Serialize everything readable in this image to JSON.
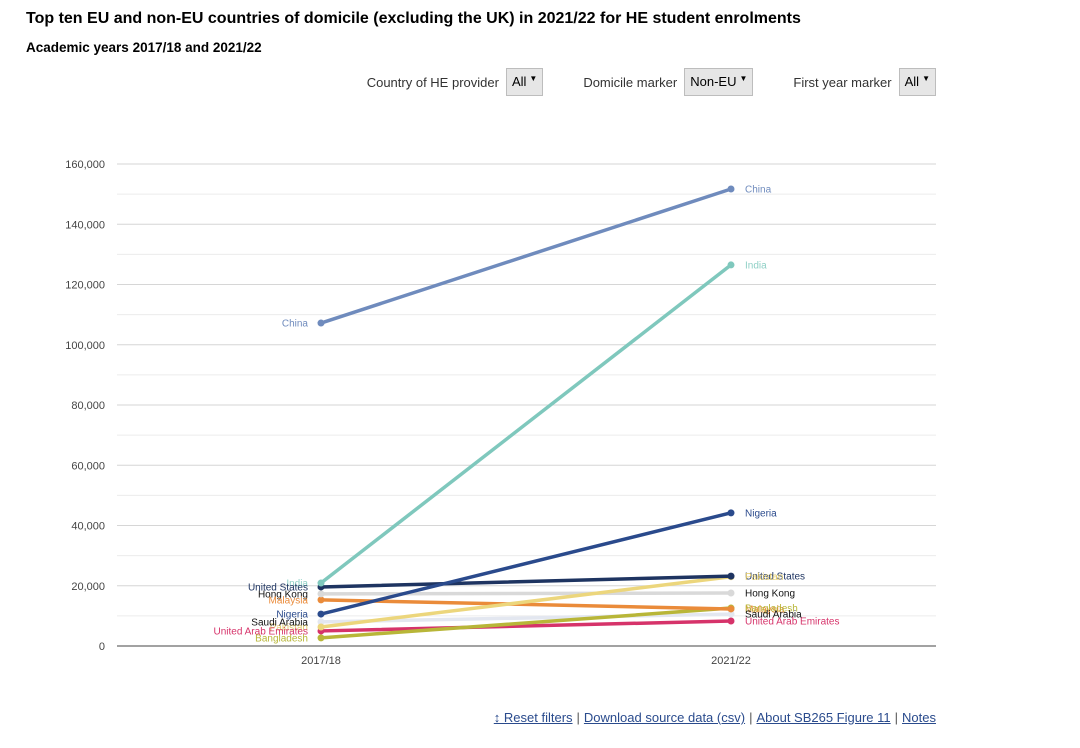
{
  "header": {
    "title": "Top ten EU and non-EU countries of domicile (excluding the UK) in 2021/22 for HE student enrolments",
    "subtitle": "Academic years 2017/18 and 2021/22"
  },
  "filters": [
    {
      "label": "Country of HE provider",
      "value": "All"
    },
    {
      "label": "Domicile marker",
      "value": "Non-EU"
    },
    {
      "label": "First year marker",
      "value": "All"
    }
  ],
  "footer": {
    "reset": "↕ Reset filters",
    "download": "Download source data (csv)",
    "about": "About SB265 Figure 11",
    "notes": "Notes",
    "separator": "|"
  },
  "chart_data": {
    "type": "line",
    "title": "Top ten EU and non-EU countries of domicile (excluding the UK) in 2021/22 for HE student enrolments",
    "subtitle": "Academic years 2017/18 and 2021/22",
    "xlabel": "",
    "ylabel": "",
    "x": [
      "2017/18",
      "2021/22"
    ],
    "ylim": [
      0,
      160000
    ],
    "yticks": [
      0,
      20000,
      40000,
      60000,
      80000,
      100000,
      120000,
      140000,
      160000
    ],
    "ytick_labels": [
      "0",
      "20,000",
      "40,000",
      "60,000",
      "80,000",
      "100,000",
      "120,000",
      "140,000",
      "160,000"
    ],
    "grid": true,
    "legend": "direct-labels",
    "series": [
      {
        "name": "China",
        "values": [
          107200,
          151700
        ],
        "color": "#6f8bbd"
      },
      {
        "name": "India",
        "values": [
          20900,
          126500
        ],
        "color": "#7fc8bd"
      },
      {
        "name": "Nigeria",
        "values": [
          10600,
          44200
        ],
        "color": "#2a4a8c"
      },
      {
        "name": "United States",
        "values": [
          19600,
          23200
        ],
        "color": "#1e3461"
      },
      {
        "name": "Pakistan",
        "values": [
          6300,
          23000
        ],
        "color": "#ecd67c"
      },
      {
        "name": "Hong Kong",
        "values": [
          17300,
          17600
        ],
        "color": "#d9d9d9"
      },
      {
        "name": "Malaysia",
        "values": [
          15300,
          12300
        ],
        "color": "#ea8b3a"
      },
      {
        "name": "Bangladesh",
        "values": [
          2700,
          12600
        ],
        "color": "#b8b638"
      },
      {
        "name": "Saudi Arabia",
        "values": [
          8000,
          10600
        ],
        "color": "#e3e7f0"
      },
      {
        "name": "United Arab Emirates",
        "values": [
          5000,
          8300
        ],
        "color": "#d6336a"
      }
    ],
    "label_colors": {
      "China": "#6f8bbd",
      "India": "#8fd0c6",
      "Nigeria": "#2a4a8c",
      "United States": "#1e3461",
      "Pakistan": "#e3cb6a",
      "Hong Kong": "#111111",
      "Malaysia": "#ea8b3a",
      "Bangladesh": "#b8b638",
      "Saudi Arabia": "#111111",
      "United Arab Emirates": "#d6336a"
    }
  }
}
